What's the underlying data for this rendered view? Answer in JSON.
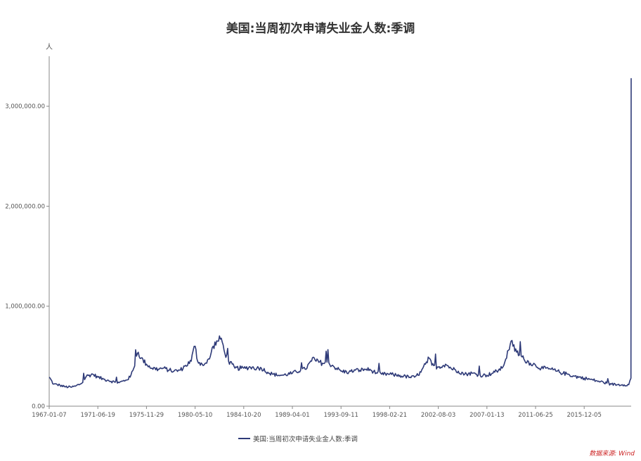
{
  "chart_data": {
    "type": "line",
    "title": "美国:当周初次申请失业金人数:季调",
    "ylabel": "人",
    "xlabel": "",
    "ylim": [
      0,
      3500000
    ],
    "yticks": [
      0,
      1000000,
      2000000,
      3000000
    ],
    "ytick_labels": [
      "0.00",
      "1,000,000.00",
      "2,000,000.00",
      "3,000,000.00"
    ],
    "xlim": [
      "1967-01-07",
      "2020-03-21"
    ],
    "xtick_labels": [
      "1967-01-07",
      "1971-06-19",
      "1975-11-29",
      "1980-05-10",
      "1984-10-20",
      "1989-04-01",
      "1993-09-11",
      "1998-02-21",
      "2002-08-03",
      "2007-01-13",
      "2011-06-25",
      "2015-12-05"
    ],
    "grid": false,
    "legend_position": "bottom",
    "color": "#2e3a78",
    "series": [
      {
        "name": "美国:当周初次申请失业金人数:季调",
        "x": [
          "1967-01-07",
          "1967-06-01",
          "1968-01-01",
          "1968-06-01",
          "1969-01-01",
          "1969-06-01",
          "1970-01-01",
          "1970-06-01",
          "1971-01-01",
          "1971-06-19",
          "1972-01-01",
          "1972-06-01",
          "1973-01-01",
          "1973-06-01",
          "1974-01-01",
          "1974-06-01",
          "1974-10-01",
          "1975-01-01",
          "1975-03-01",
          "1975-06-01",
          "1975-11-29",
          "1976-06-01",
          "1977-01-01",
          "1977-06-01",
          "1978-01-01",
          "1978-06-01",
          "1979-01-01",
          "1979-06-01",
          "1980-01-01",
          "1980-03-01",
          "1980-05-10",
          "1980-08-01",
          "1981-01-01",
          "1981-06-01",
          "1981-10-01",
          "1982-01-01",
          "1982-06-01",
          "1982-10-01",
          "1983-01-01",
          "1983-06-01",
          "1984-01-01",
          "1984-10-20",
          "1985-06-01",
          "1986-01-01",
          "1986-06-01",
          "1987-01-01",
          "1987-06-01",
          "1988-01-01",
          "1988-06-01",
          "1989-04-01",
          "1990-01-01",
          "1990-06-01",
          "1991-01-01",
          "1991-03-01",
          "1991-06-01",
          "1992-01-01",
          "1992-06-01",
          "1993-01-01",
          "1993-09-11",
          "1994-06-01",
          "1995-01-01",
          "1995-06-01",
          "1996-01-01",
          "1996-06-01",
          "1997-01-01",
          "1997-06-01",
          "1998-02-21",
          "1998-10-01",
          "1999-06-01",
          "2000-01-01",
          "2000-06-01",
          "2001-01-01",
          "2001-06-01",
          "2001-10-01",
          "2002-01-01",
          "2002-08-03",
          "2003-04-01",
          "2003-10-01",
          "2004-06-01",
          "2005-01-01",
          "2005-09-01",
          "2006-06-01",
          "2007-01-13",
          "2007-10-01",
          "2008-06-01",
          "2008-10-01",
          "2009-01-01",
          "2009-03-28",
          "2009-06-01",
          "2009-10-01",
          "2010-06-01",
          "2011-01-01",
          "2011-06-25",
          "2012-01-01",
          "2012-11-01",
          "2013-06-01",
          "2014-01-01",
          "2014-06-01",
          "2015-01-01",
          "2015-12-05",
          "2016-06-01",
          "2017-01-01",
          "2017-06-01",
          "2018-01-01",
          "2018-06-01",
          "2019-01-01",
          "2019-06-01",
          "2020-01-01",
          "2020-03-14",
          "2020-03-21"
        ],
        "values": [
          290000,
          220000,
          210000,
          195000,
          190000,
          200000,
          230000,
          300000,
          320000,
          290000,
          270000,
          260000,
          240000,
          235000,
          260000,
          290000,
          380000,
          500000,
          540000,
          480000,
          420000,
          380000,
          370000,
          380000,
          360000,
          350000,
          360000,
          400000,
          450000,
          550000,
          600000,
          450000,
          420000,
          430000,
          500000,
          600000,
          650000,
          680000,
          560000,
          450000,
          380000,
          380000,
          390000,
          380000,
          380000,
          340000,
          320000,
          310000,
          310000,
          330000,
          360000,
          370000,
          450000,
          490000,
          450000,
          430000,
          440000,
          400000,
          350000,
          340000,
          360000,
          360000,
          370000,
          360000,
          330000,
          320000,
          320000,
          310000,
          300000,
          290000,
          290000,
          340000,
          420000,
          480000,
          410000,
          390000,
          420000,
          380000,
          350000,
          320000,
          330000,
          310000,
          310000,
          340000,
          380000,
          470000,
          560000,
          650000,
          600000,
          540000,
          470000,
          430000,
          410000,
          380000,
          370000,
          350000,
          330000,
          320000,
          300000,
          280000,
          270000,
          255000,
          245000,
          230000,
          220000,
          215000,
          215000,
          215000,
          280000,
          3280000
        ]
      }
    ],
    "source": "数据来源: Wind"
  }
}
